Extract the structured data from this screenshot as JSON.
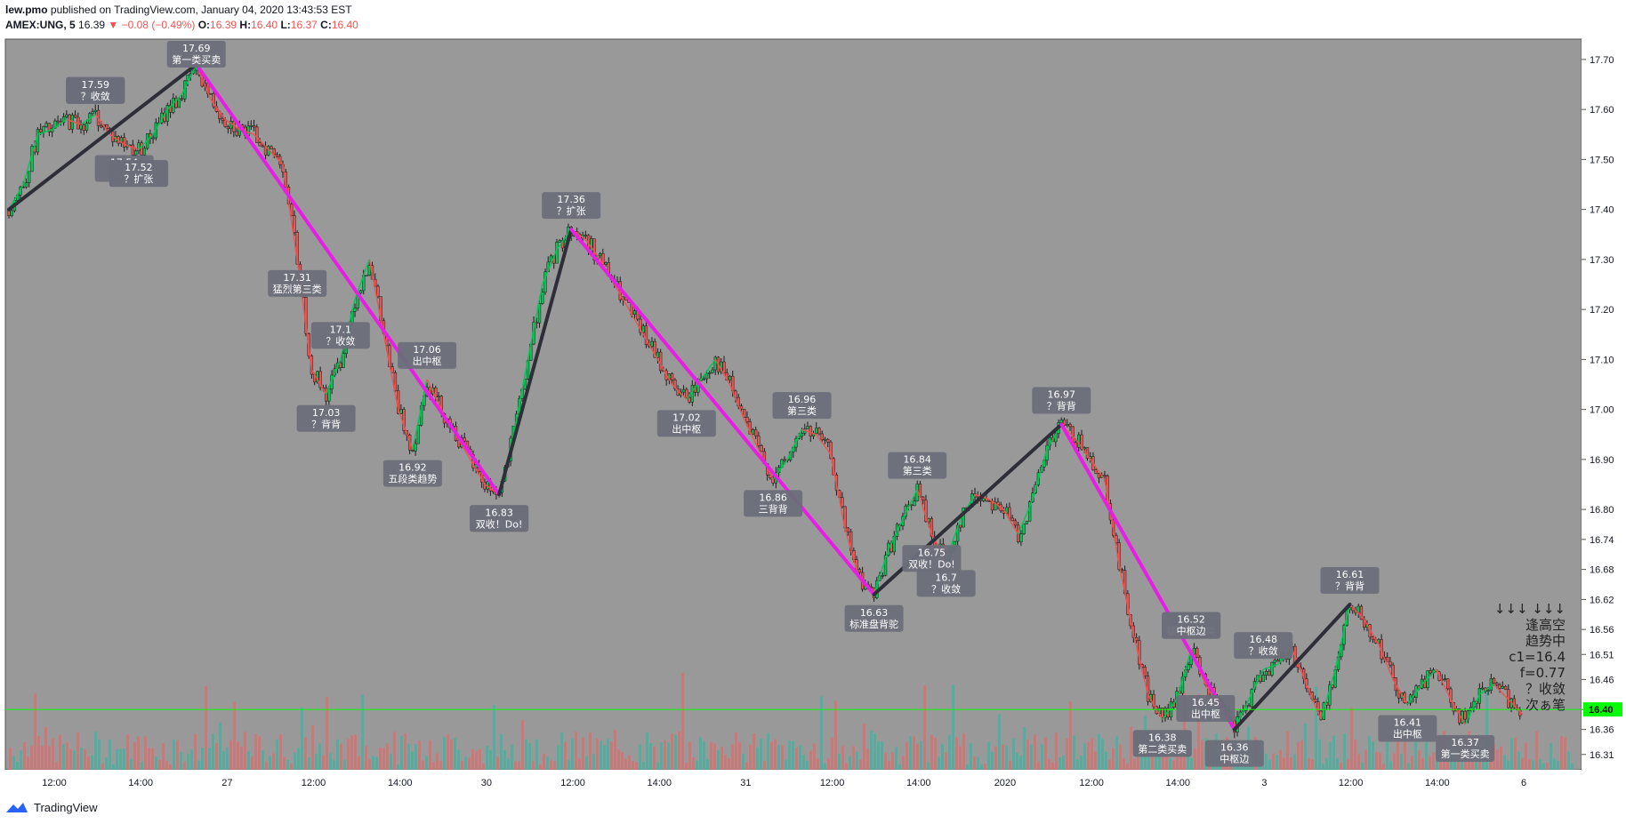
{
  "header": {
    "author": "lew.pmo",
    "published_text": "published on TradingView.com, January 04, 2020 13:43:53 EST",
    "symbol": "AMEX:UNG, 5",
    "last": "16.39",
    "change": "▼ −0.08 (−0.49%)",
    "o_label": "O:",
    "o": "16.39",
    "h_label": "H:",
    "h": "16.40",
    "l_label": "L:",
    "l": "16.37",
    "c_label": "C:",
    "c": "16.40"
  },
  "footer": {
    "brand": "TradingView"
  },
  "colors": {
    "background": "#999999",
    "up": "#00c853",
    "down": "#ef5350",
    "trend_down": "#e91ee6",
    "trend_up": "#2e2e38",
    "price_line": "#00ff00",
    "label_bg": "#6b6e7a"
  },
  "price_axis": {
    "ticks": [
      "17.70",
      "17.60",
      "17.50",
      "17.40",
      "17.30",
      "17.20",
      "17.10",
      "17.00",
      "16.90",
      "16.80",
      "16.74",
      "16.68",
      "16.62",
      "16.56",
      "16.51",
      "16.46",
      "16.40",
      "16.36",
      "16.31"
    ],
    "current_price": "16.40"
  },
  "time_axis": {
    "ticks": [
      "12:00",
      "14:00",
      "27",
      "12:00",
      "14:00",
      "30",
      "12:00",
      "14:00",
      "31",
      "12:00",
      "14:00",
      "2020",
      "12:00",
      "14:00",
      "3",
      "12:00",
      "14:00",
      "6"
    ]
  },
  "chart_data": {
    "type": "line",
    "title": "",
    "ylim": [
      16.29,
      17.73
    ],
    "series": [
      {
        "values": [
          17.4,
          17.45,
          17.55,
          17.56,
          17.58,
          17.57,
          17.59,
          17.55,
          17.53,
          17.52,
          17.55,
          17.6,
          17.63,
          17.69,
          17.62,
          17.58,
          17.56,
          17.55,
          17.52,
          17.49,
          17.3,
          17.08,
          17.03,
          17.1,
          17.22,
          17.3,
          17.15,
          17.0,
          16.92,
          17.06,
          17.0,
          16.95,
          16.9,
          16.85,
          16.83,
          16.95,
          17.1,
          17.25,
          17.32,
          17.36,
          17.34,
          17.3,
          17.25,
          17.2,
          17.15,
          17.1,
          17.05,
          17.02,
          17.06,
          17.1,
          17.05,
          16.98,
          16.92,
          16.86,
          16.9,
          16.96,
          16.95,
          16.91,
          16.76,
          16.66,
          16.63,
          16.72,
          16.78,
          16.84,
          16.75,
          16.7,
          16.78,
          16.83,
          16.82,
          16.8,
          16.75,
          16.82,
          16.92,
          16.97,
          16.94,
          16.9,
          16.86,
          16.69,
          16.55,
          16.43,
          16.38,
          16.42,
          16.52,
          16.45,
          16.4,
          16.36,
          16.42,
          16.48,
          16.49,
          16.52,
          16.45,
          16.38,
          16.48,
          16.61,
          16.58,
          16.53,
          16.46,
          16.41,
          16.45,
          16.48,
          16.42,
          16.37,
          16.43,
          16.45,
          16.42,
          16.39
        ]
      }
    ],
    "annotations": [
      {
        "value": "17.59",
        "text": "？扩张"
      },
      {
        "value": "17.59",
        "text": "中枢边"
      },
      {
        "value": "17.54",
        "text": "中枢边"
      },
      {
        "value": "17.52",
        "text": "？扩张"
      },
      {
        "value": "17.69",
        "text": "第一类买卖"
      },
      {
        "value": "17.59",
        "text": "？收敛"
      },
      {
        "value": "17.52",
        "text": "？扩张"
      },
      {
        "value": "17.31",
        "text": "猛烈第三类"
      },
      {
        "value": "17.03",
        "text": "？背背"
      },
      {
        "value": "17.06",
        "text": "出中枢"
      },
      {
        "value": "16.92",
        "text": "五段类趋势"
      },
      {
        "value": "16.83",
        "text": "第一类买卖"
      },
      {
        "value": "17.36",
        "text": "？扩张"
      },
      {
        "value": "17.1",
        "text": "？收敛"
      },
      {
        "value": "17.02",
        "text": "出中枢"
      },
      {
        "value": "16.96",
        "text": "第三类"
      },
      {
        "value": "16.86",
        "text": "三背背"
      },
      {
        "value": "16.63",
        "text": "标准盘背驼"
      },
      {
        "value": "16.84",
        "text": "第三类"
      },
      {
        "value": "16.7",
        "text": "？收敛"
      },
      {
        "value": "16.83",
        "text": "双收！Do!"
      },
      {
        "value": "16.75",
        "text": "双收！Do!"
      },
      {
        "value": "16.97",
        "text": "？背背"
      },
      {
        "value": "16.52",
        "text": "猛烈第三类"
      },
      {
        "value": "16.38",
        "text": "？扩张"
      },
      {
        "value": "16.36",
        "text": "中枢边"
      },
      {
        "value": "16.52",
        "text": "中枢边"
      },
      {
        "value": "16.38",
        "text": "第二类买卖"
      },
      {
        "value": "16.61",
        "text": "？背背"
      },
      {
        "value": "16.48",
        "text": "？收敛"
      },
      {
        "value": "16.41",
        "text": "出中枢"
      },
      {
        "value": "16.37",
        "text": "第一类买卖"
      },
      {
        "value": "16.45",
        "text": "出中枢"
      }
    ],
    "side_panel": [
      "↓↓↓ ↓↓↓",
      "逢高空",
      "趋势中",
      "c1=16.4",
      "f=0.77",
      "？收敛",
      "次ぁ笔"
    ]
  }
}
